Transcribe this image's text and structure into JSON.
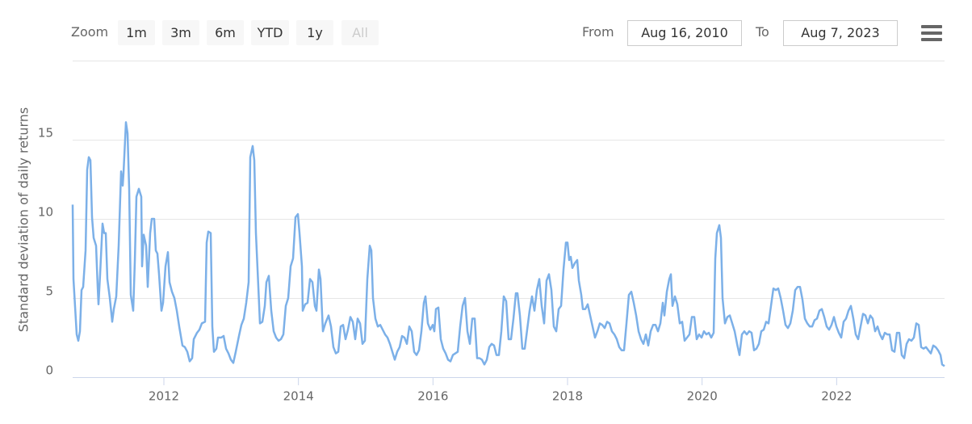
{
  "ui": {
    "zoom_label": "Zoom",
    "zoom_buttons": [
      "1m",
      "3m",
      "6m",
      "YTD",
      "1y",
      "All"
    ],
    "from_label": "From",
    "from": "Aug 16, 2010",
    "to_label": "To",
    "to": "Aug 7, 2023"
  },
  "chart_data": {
    "type": "line",
    "y_label": "Standard deviation of daily returns",
    "color": "#7cb0e8",
    "grid": true,
    "xlim": [
      2010.644,
      2023.604
    ],
    "xticks": [
      2012,
      2014,
      2016,
      2018,
      2020,
      2022
    ],
    "ylim": [
      0,
      20
    ],
    "yticks": [
      0,
      5,
      10,
      15
    ],
    "x": [
      2010.644,
      2010.656,
      2010.704,
      2010.728,
      2010.752,
      2010.776,
      2010.8,
      2010.836,
      2010.86,
      2010.884,
      2010.908,
      2010.932,
      2010.956,
      2010.992,
      2011.016,
      2011.028,
      2011.052,
      2011.088,
      2011.112,
      2011.136,
      2011.16,
      2011.196,
      2011.232,
      2011.256,
      2011.292,
      2011.328,
      2011.364,
      2011.388,
      2011.4,
      2011.436,
      2011.46,
      2011.484,
      2011.508,
      2011.544,
      2011.568,
      2011.592,
      2011.628,
      2011.664,
      2011.676,
      2011.7,
      2011.736,
      2011.76,
      2011.796,
      2011.82,
      2011.856,
      2011.88,
      2011.904,
      2011.928,
      2011.964,
      2011.988,
      2012.024,
      2012.06,
      2012.084,
      2012.12,
      2012.156,
      2012.192,
      2012.228,
      2012.276,
      2012.312,
      2012.348,
      2012.384,
      2012.42,
      2012.444,
      2012.492,
      2012.528,
      2012.564,
      2012.612,
      2012.636,
      2012.66,
      2012.696,
      2012.72,
      2012.744,
      2012.78,
      2012.804,
      2012.852,
      2012.888,
      2012.924,
      2012.96,
      2012.996,
      2013.032,
      2013.068,
      2013.116,
      2013.152,
      2013.188,
      2013.224,
      2013.26,
      2013.284,
      2013.32,
      2013.344,
      2013.368,
      2013.404,
      2013.428,
      2013.464,
      2013.5,
      2013.524,
      2013.56,
      2013.596,
      2013.632,
      2013.668,
      2013.704,
      2013.74,
      2013.776,
      2013.812,
      2013.848,
      2013.884,
      2013.92,
      2013.956,
      2013.992,
      2014.016,
      2014.052,
      2014.064,
      2014.1,
      2014.136,
      2014.172,
      2014.208,
      2014.244,
      2014.268,
      2014.304,
      2014.328,
      2014.364,
      2014.4,
      2014.448,
      2014.484,
      2014.52,
      2014.556,
      2014.592,
      2014.628,
      2014.664,
      2014.7,
      2014.736,
      2014.772,
      2014.808,
      2014.844,
      2014.88,
      2014.916,
      2014.952,
      2014.988,
      2015.024,
      2015.06,
      2015.084,
      2015.108,
      2015.144,
      2015.18,
      2015.216,
      2015.252,
      2015.288,
      2015.324,
      2015.36,
      2015.396,
      2015.432,
      2015.468,
      2015.504,
      2015.54,
      2015.576,
      2015.612,
      2015.648,
      2015.684,
      2015.72,
      2015.756,
      2015.792,
      2015.828,
      2015.864,
      2015.888,
      2015.924,
      2015.96,
      2015.996,
      2016.02,
      2016.044,
      2016.08,
      2016.116,
      2016.152,
      2016.188,
      2016.224,
      2016.26,
      2016.296,
      2016.332,
      2016.368,
      2016.404,
      2016.44,
      2016.476,
      2016.512,
      2016.548,
      2016.584,
      2016.62,
      2016.656,
      2016.692,
      2016.728,
      2016.764,
      2016.8,
      2016.836,
      2016.872,
      2016.908,
      2016.944,
      2016.98,
      2017.016,
      2017.052,
      2017.088,
      2017.124,
      2017.16,
      2017.196,
      2017.232,
      2017.256,
      2017.292,
      2017.328,
      2017.364,
      2017.4,
      2017.436,
      2017.472,
      2017.508,
      2017.544,
      2017.58,
      2017.616,
      2017.652,
      2017.688,
      2017.724,
      2017.76,
      2017.796,
      2017.832,
      2017.868,
      2017.904,
      2017.94,
      2017.976,
      2018.0,
      2018.024,
      2018.048,
      2018.072,
      2018.108,
      2018.144,
      2018.168,
      2018.204,
      2018.228,
      2018.264,
      2018.3,
      2018.336,
      2018.372,
      2018.408,
      2018.444,
      2018.48,
      2018.516,
      2018.552,
      2018.588,
      2018.624,
      2018.66,
      2018.696,
      2018.732,
      2018.768,
      2018.804,
      2018.84,
      2018.876,
      2018.912,
      2018.948,
      2018.984,
      2019.02,
      2019.056,
      2019.092,
      2019.128,
      2019.164,
      2019.2,
      2019.236,
      2019.272,
      2019.308,
      2019.344,
      2019.38,
      2019.416,
      2019.44,
      2019.476,
      2019.512,
      2019.536,
      2019.56,
      2019.596,
      2019.632,
      2019.668,
      2019.704,
      2019.74,
      2019.776,
      2019.812,
      2019.848,
      2019.884,
      2019.92,
      2019.956,
      2019.992,
      2020.028,
      2020.064,
      2020.1,
      2020.136,
      2020.172,
      2020.196,
      2020.22,
      2020.256,
      2020.28,
      2020.304,
      2020.34,
      2020.376,
      2020.412,
      2020.448,
      2020.484,
      2020.52,
      2020.556,
      2020.592,
      2020.628,
      2020.664,
      2020.7,
      2020.736,
      2020.772,
      2020.808,
      2020.844,
      2020.88,
      2020.916,
      2020.952,
      2020.988,
      2021.024,
      2021.06,
      2021.096,
      2021.132,
      2021.168,
      2021.204,
      2021.24,
      2021.276,
      2021.312,
      2021.348,
      2021.384,
      2021.42,
      2021.456,
      2021.492,
      2021.528,
      2021.564,
      2021.6,
      2021.636,
      2021.672,
      2021.708,
      2021.744,
      2021.78,
      2021.816,
      2021.852,
      2021.888,
      2021.924,
      2021.96,
      2021.996,
      2022.032,
      2022.068,
      2022.104,
      2022.14,
      2022.176,
      2022.212,
      2022.248,
      2022.284,
      2022.32,
      2022.356,
      2022.392,
      2022.428,
      2022.464,
      2022.5,
      2022.536,
      2022.572,
      2022.608,
      2022.644,
      2022.68,
      2022.716,
      2022.752,
      2022.788,
      2022.824,
      2022.86,
      2022.896,
      2022.932,
      2022.968,
      2023.004,
      2023.04,
      2023.076,
      2023.112,
      2023.148,
      2023.184,
      2023.22,
      2023.256,
      2023.292,
      2023.328,
      2023.364,
      2023.4,
      2023.436,
      2023.472,
      2023.508,
      2023.544,
      2023.568,
      2023.604
    ],
    "values": [
      10.9,
      6.2,
      2.7,
      2.3,
      2.9,
      5.5,
      5.7,
      8.0,
      13.1,
      13.9,
      13.7,
      10.1,
      8.8,
      8.3,
      5.7,
      4.6,
      6.5,
      9.7,
      9.1,
      9.1,
      6.2,
      5.0,
      3.5,
      4.3,
      5.1,
      8.3,
      13.0,
      12.1,
      12.9,
      16.1,
      15.4,
      11.9,
      5.2,
      4.2,
      7.3,
      11.4,
      11.9,
      11.4,
      7.0,
      9.0,
      8.3,
      5.7,
      9.1,
      10.0,
      10.0,
      8.0,
      7.8,
      6.5,
      4.2,
      4.7,
      7.0,
      7.9,
      6.0,
      5.4,
      5.0,
      4.2,
      3.2,
      2.0,
      1.9,
      1.6,
      1.0,
      1.2,
      2.4,
      2.8,
      3.0,
      3.4,
      3.5,
      8.5,
      9.2,
      9.1,
      3.2,
      1.6,
      1.8,
      2.5,
      2.5,
      2.6,
      1.8,
      1.5,
      1.1,
      0.9,
      1.6,
      2.6,
      3.3,
      3.7,
      4.7,
      6.0,
      13.9,
      14.6,
      13.7,
      9.1,
      5.7,
      3.4,
      3.5,
      4.5,
      6.0,
      6.4,
      4.2,
      2.9,
      2.5,
      2.3,
      2.4,
      2.7,
      4.5,
      5.0,
      7.0,
      7.5,
      10.1,
      10.3,
      9.1,
      7.0,
      4.2,
      4.6,
      4.7,
      6.2,
      6.0,
      4.5,
      4.2,
      6.8,
      6.2,
      2.9,
      3.4,
      3.9,
      3.2,
      1.9,
      1.5,
      1.6,
      3.2,
      3.3,
      2.4,
      3.0,
      3.8,
      3.5,
      2.4,
      3.7,
      3.4,
      2.1,
      2.3,
      6.2,
      8.3,
      8.0,
      5.0,
      3.7,
      3.2,
      3.3,
      3.0,
      2.7,
      2.5,
      2.1,
      1.6,
      1.1,
      1.6,
      1.9,
      2.6,
      2.5,
      2.1,
      3.2,
      2.9,
      1.6,
      1.4,
      1.7,
      2.9,
      4.7,
      5.1,
      3.4,
      3.0,
      3.3,
      2.9,
      4.3,
      4.4,
      2.4,
      1.8,
      1.5,
      1.1,
      1.0,
      1.4,
      1.5,
      1.6,
      3.2,
      4.5,
      5.0,
      2.9,
      2.1,
      3.7,
      3.7,
      1.2,
      1.2,
      1.1,
      0.8,
      1.1,
      1.9,
      2.1,
      2.0,
      1.4,
      1.4,
      2.9,
      5.1,
      4.8,
      2.4,
      2.4,
      3.7,
      5.3,
      5.3,
      3.9,
      1.8,
      1.8,
      3.0,
      4.2,
      5.1,
      4.2,
      5.5,
      6.2,
      4.5,
      3.4,
      6.1,
      6.5,
      5.5,
      3.2,
      2.9,
      4.3,
      4.5,
      6.8,
      8.5,
      8.5,
      7.4,
      7.6,
      6.9,
      7.2,
      7.4,
      6.1,
      5.2,
      4.3,
      4.3,
      4.6,
      3.9,
      3.2,
      2.5,
      2.9,
      3.4,
      3.3,
      3.1,
      3.5,
      3.4,
      2.9,
      2.7,
      2.4,
      1.9,
      1.7,
      1.7,
      3.4,
      5.2,
      5.4,
      4.7,
      3.9,
      2.9,
      2.4,
      2.1,
      2.7,
      2.0,
      2.9,
      3.3,
      3.3,
      2.9,
      3.4,
      4.7,
      3.9,
      5.4,
      6.2,
      6.5,
      4.5,
      5.1,
      4.6,
      3.4,
      3.5,
      2.3,
      2.5,
      2.7,
      3.8,
      3.8,
      2.4,
      2.7,
      2.5,
      2.9,
      2.7,
      2.8,
      2.5,
      2.8,
      7.5,
      9.1,
      9.6,
      8.8,
      5.0,
      3.4,
      3.8,
      3.9,
      3.4,
      2.9,
      2.1,
      1.4,
      2.7,
      2.9,
      2.7,
      2.9,
      2.8,
      1.7,
      1.8,
      2.1,
      2.9,
      3.0,
      3.5,
      3.4,
      4.5,
      5.6,
      5.5,
      5.6,
      5.0,
      4.2,
      3.3,
      3.1,
      3.4,
      4.2,
      5.5,
      5.7,
      5.7,
      4.9,
      3.7,
      3.4,
      3.2,
      3.2,
      3.6,
      3.7,
      4.2,
      4.3,
      3.8,
      3.2,
      3.0,
      3.3,
      3.8,
      3.2,
      2.8,
      2.5,
      3.5,
      3.7,
      4.2,
      4.5,
      3.7,
      2.7,
      2.4,
      3.2,
      4.0,
      3.9,
      3.4,
      3.9,
      3.7,
      2.9,
      3.2,
      2.7,
      2.4,
      2.8,
      2.7,
      2.7,
      1.7,
      1.6,
      2.8,
      2.8,
      1.4,
      1.2,
      2.1,
      2.4,
      2.3,
      2.5,
      3.4,
      3.3,
      1.9,
      1.8,
      1.9,
      1.7,
      1.5,
      2.0,
      1.9,
      1.7,
      1.4,
      0.8,
      0.7
    ]
  }
}
